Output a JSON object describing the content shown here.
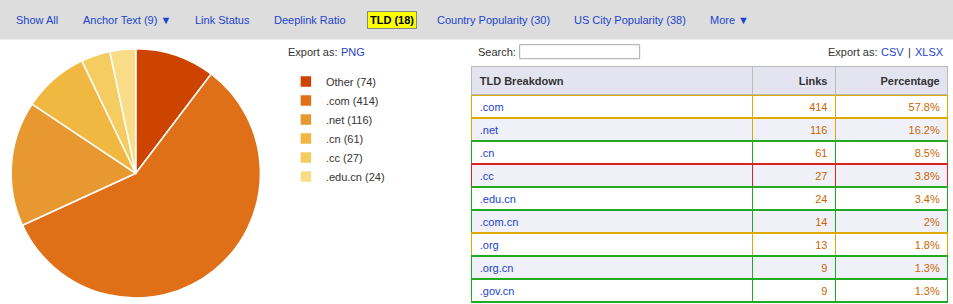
{
  "chart_data": [
    {
      "type": "pie",
      "categories": [
        "Other (74)",
        ".com (414)",
        ".net (116)",
        ".cn (61)",
        ".cc (27)",
        ".edu.cn (24)"
      ],
      "values": [
        74,
        414,
        116,
        61,
        27,
        24
      ],
      "colors": [
        "#cc4400",
        "#e07018",
        "#e89830",
        "#f0b840",
        "#f5cc60",
        "#f8dc88"
      ],
      "legend": "right",
      "annotations": [
        {
          "text": "Export as:"
        },
        {
          "text": "PNG",
          "color": "#2244cc"
        }
      ]
    },
    {
      "type": "table",
      "category_label": "TLD Breakdown",
      "categories": [
        ".com",
        ".net",
        ".cn",
        ".cc",
        ".edu.cn",
        ".com.cn",
        ".org",
        ".org.cn",
        ".gov.cn"
      ],
      "series": [
        {
          "name": "Links",
          "color": "#cc6600",
          "values": [
            414,
            116,
            61,
            27,
            24,
            14,
            13,
            9,
            9
          ]
        },
        {
          "name": "Percentage",
          "color": "#cc6600",
          "values": [
            57.8,
            16.2,
            8.5,
            3.8,
            3.4,
            2,
            1.8,
            1.3,
            1.3
          ],
          "value_labels": [
            "57.8%",
            "16.2%",
            "8.5%",
            "3.8%",
            "3.4%",
            "2%",
            "1.8%",
            "1.3%",
            "1.3%"
          ]
        }
      ],
      "colors": [
        "#ddaa00",
        "#ddaa00",
        "#22aa22",
        "#dd2222",
        "#22aa22",
        "#22aa22",
        "#ddaa00",
        "#22aa22",
        "#22aa22"
      ],
      "annotations": [
        {
          "text": "Search:"
        },
        {
          "text": "Export as:"
        },
        {
          "text": "CSV",
          "color": "#2244cc"
        },
        {
          "text": "|"
        },
        {
          "text": "XLSX",
          "color": "#2244cc"
        }
      ]
    }
  ],
  "tabs": [
    "Show All",
    "Anchor Text (9) ▼",
    "Link Status",
    "Deeplink Ratio",
    "TLD (18)",
    "Country Popularity (30)",
    "US City Popularity (38)",
    "More ▼"
  ],
  "active_tab": "TLD (18)"
}
